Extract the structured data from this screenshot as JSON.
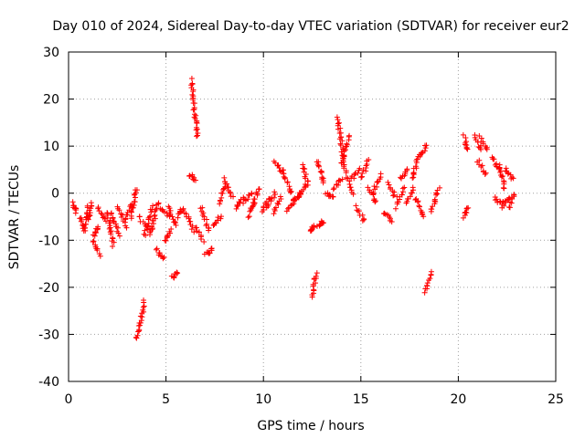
{
  "chart_data": {
    "type": "scatter",
    "title": "Day 010 of 2024, Sidereal Day-to-day VTEC variation (SDTVAR) for receiver eur2",
    "xlabel": "GPS time / hours",
    "ylabel": "SDTVAR / TECUs",
    "xlim": [
      0,
      25
    ],
    "ylim": [
      -40,
      30
    ],
    "xticks": [
      0,
      5,
      10,
      15,
      20,
      25
    ],
    "yticks": [
      -40,
      -30,
      -20,
      -10,
      0,
      10,
      20,
      30
    ],
    "grid": true,
    "marker": "+",
    "color": "#ff0000",
    "segments": [
      {
        "x": [
          0.2,
          0.4
        ],
        "y": [
          -2,
          -4
        ]
      },
      {
        "x": [
          0.6,
          0.8
        ],
        "y": [
          -5,
          -8
        ]
      },
      {
        "x": [
          0.8,
          1.0
        ],
        "y": [
          -8,
          -3
        ]
      },
      {
        "x": [
          1.0,
          1.2
        ],
        "y": [
          -6,
          -2
        ]
      },
      {
        "x": [
          1.3,
          1.5
        ],
        "y": [
          -9,
          -7
        ]
      },
      {
        "x": [
          1.3,
          1.6
        ],
        "y": [
          -10,
          -13
        ]
      },
      {
        "x": [
          1.5,
          1.9
        ],
        "y": [
          -3,
          -6
        ]
      },
      {
        "x": [
          2.0,
          2.3
        ],
        "y": [
          -4,
          -11
        ]
      },
      {
        "x": [
          2.2,
          2.6
        ],
        "y": [
          -4,
          -9
        ]
      },
      {
        "x": [
          2.5,
          3.0
        ],
        "y": [
          -3,
          -7
        ]
      },
      {
        "x": [
          2.9,
          3.3
        ],
        "y": [
          -5,
          -2
        ]
      },
      {
        "x": [
          3.2,
          3.5
        ],
        "y": [
          -5,
          1
        ]
      },
      {
        "x": [
          3.5,
          3.9
        ],
        "y": [
          -31,
          -23
        ]
      },
      {
        "x": [
          3.6,
          4.2
        ],
        "y": [
          -5,
          -8
        ]
      },
      {
        "x": [
          3.9,
          4.3
        ],
        "y": [
          -9,
          -3
        ]
      },
      {
        "x": [
          4.2,
          4.6
        ],
        "y": [
          -9,
          -2
        ]
      },
      {
        "x": [
          4.5,
          4.9
        ],
        "y": [
          -12,
          -14
        ]
      },
      {
        "x": [
          4.7,
          5.2
        ],
        "y": [
          -3,
          -5
        ]
      },
      {
        "x": [
          4.9,
          5.3
        ],
        "y": [
          -10,
          -8
        ]
      },
      {
        "x": [
          5.1,
          5.5
        ],
        "y": [
          -3,
          -7
        ]
      },
      {
        "x": [
          5.3,
          5.6
        ],
        "y": [
          -18,
          -17
        ]
      },
      {
        "x": [
          5.6,
          5.9
        ],
        "y": [
          -5,
          -3
        ]
      },
      {
        "x": [
          6.0,
          6.4
        ],
        "y": [
          -4,
          -8
        ]
      },
      {
        "x": [
          6.2,
          6.5
        ],
        "y": [
          4,
          3
        ]
      },
      {
        "x": [
          6.3,
          6.6
        ],
        "y": [
          24,
          12
        ]
      },
      {
        "x": [
          6.5,
          6.9
        ],
        "y": [
          -7,
          -10
        ]
      },
      {
        "x": [
          6.8,
          7.2
        ],
        "y": [
          -3,
          -8
        ]
      },
      {
        "x": [
          7.0,
          7.4
        ],
        "y": [
          -13,
          -12
        ]
      },
      {
        "x": [
          7.4,
          7.8
        ],
        "y": [
          -7,
          -5
        ]
      },
      {
        "x": [
          7.7,
          8.1
        ],
        "y": [
          -2,
          2
        ]
      },
      {
        "x": [
          8.0,
          8.4
        ],
        "y": [
          3,
          -1
        ]
      },
      {
        "x": [
          8.6,
          9.0
        ],
        "y": [
          -3,
          -1
        ]
      },
      {
        "x": [
          9.0,
          9.4
        ],
        "y": [
          -2,
          0
        ]
      },
      {
        "x": [
          9.2,
          9.6
        ],
        "y": [
          -5,
          -2
        ]
      },
      {
        "x": [
          9.4,
          9.8
        ],
        "y": [
          -3,
          1
        ]
      },
      {
        "x": [
          9.9,
          10.3
        ],
        "y": [
          -4,
          -1
        ]
      },
      {
        "x": [
          10.2,
          10.6
        ],
        "y": [
          -3,
          0
        ]
      },
      {
        "x": [
          10.5,
          10.9
        ],
        "y": [
          -4,
          -1
        ]
      },
      {
        "x": [
          10.6,
          11.0
        ],
        "y": [
          7,
          4
        ]
      },
      {
        "x": [
          11.0,
          11.4
        ],
        "y": [
          5,
          0
        ]
      },
      {
        "x": [
          11.2,
          11.6
        ],
        "y": [
          -4,
          -1
        ]
      },
      {
        "x": [
          11.5,
          11.9
        ],
        "y": [
          -2,
          0
        ]
      },
      {
        "x": [
          11.8,
          12.2
        ],
        "y": [
          -1,
          2
        ]
      },
      {
        "x": [
          12.0,
          12.3
        ],
        "y": [
          6,
          2
        ]
      },
      {
        "x": [
          12.4,
          12.6
        ],
        "y": [
          -8,
          -7
        ]
      },
      {
        "x": [
          12.5,
          12.7
        ],
        "y": [
          -22,
          -17
        ]
      },
      {
        "x": [
          12.8,
          13.1
        ],
        "y": [
          -7,
          -6
        ]
      },
      {
        "x": [
          12.8,
          13.1
        ],
        "y": [
          7,
          2
        ]
      },
      {
        "x": [
          13.2,
          13.6
        ],
        "y": [
          0,
          -1
        ]
      },
      {
        "x": [
          13.6,
          14.0
        ],
        "y": [
          1,
          3
        ]
      },
      {
        "x": [
          13.8,
          14.2
        ],
        "y": [
          16,
          5
        ]
      },
      {
        "x": [
          14.0,
          14.4
        ],
        "y": [
          6,
          12
        ]
      },
      {
        "x": [
          14.2,
          14.6
        ],
        "y": [
          4,
          0
        ]
      },
      {
        "x": [
          14.5,
          14.9
        ],
        "y": [
          3,
          5
        ]
      },
      {
        "x": [
          14.8,
          15.2
        ],
        "y": [
          -3,
          -6
        ]
      },
      {
        "x": [
          15.0,
          15.4
        ],
        "y": [
          3,
          7
        ]
      },
      {
        "x": [
          15.4,
          15.8
        ],
        "y": [
          1,
          -2
        ]
      },
      {
        "x": [
          15.6,
          16.0
        ],
        "y": [
          0,
          4
        ]
      },
      {
        "x": [
          16.2,
          16.6
        ],
        "y": [
          -4,
          -6
        ]
      },
      {
        "x": [
          16.4,
          16.8
        ],
        "y": [
          2,
          -1
        ]
      },
      {
        "x": [
          16.8,
          17.2
        ],
        "y": [
          -3,
          1
        ]
      },
      {
        "x": [
          17.0,
          17.4
        ],
        "y": [
          3,
          5
        ]
      },
      {
        "x": [
          17.3,
          17.7
        ],
        "y": [
          -2,
          1
        ]
      },
      {
        "x": [
          17.6,
          18.0
        ],
        "y": [
          3,
          8
        ]
      },
      {
        "x": [
          17.8,
          18.2
        ],
        "y": [
          -1,
          -5
        ]
      },
      {
        "x": [
          18.0,
          18.4
        ],
        "y": [
          8,
          10
        ]
      },
      {
        "x": [
          18.3,
          18.6
        ],
        "y": [
          -21,
          -17
        ]
      },
      {
        "x": [
          18.6,
          19.0
        ],
        "y": [
          -4,
          1
        ]
      },
      {
        "x": [
          20.3,
          20.5
        ],
        "y": [
          12,
          9
        ]
      },
      {
        "x": [
          20.3,
          20.5
        ],
        "y": [
          -5,
          -3
        ]
      },
      {
        "x": [
          20.8,
          21.2
        ],
        "y": [
          12,
          9
        ]
      },
      {
        "x": [
          21.0,
          21.4
        ],
        "y": [
          7,
          4
        ]
      },
      {
        "x": [
          21.1,
          21.5
        ],
        "y": [
          12,
          9
        ]
      },
      {
        "x": [
          21.7,
          22.1
        ],
        "y": [
          8,
          5
        ]
      },
      {
        "x": [
          21.9,
          22.3
        ],
        "y": [
          -1,
          -3
        ]
      },
      {
        "x": [
          22.1,
          22.4
        ],
        "y": [
          6,
          1
        ]
      },
      {
        "x": [
          22.3,
          22.6
        ],
        "y": [
          -2,
          -1
        ]
      },
      {
        "x": [
          22.4,
          22.8
        ],
        "y": [
          5,
          3
        ]
      },
      {
        "x": [
          22.6,
          22.9
        ],
        "y": [
          -3,
          0
        ]
      }
    ]
  }
}
